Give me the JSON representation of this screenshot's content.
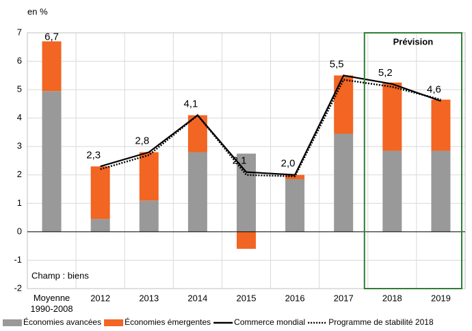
{
  "chart_data": {
    "type": "bar",
    "y_label": "en %",
    "categories": [
      "Moyenne\n1990-2008",
      "2012",
      "2013",
      "2014",
      "2015",
      "2016",
      "2017",
      "2018",
      "2019"
    ],
    "series": [
      {
        "name": "Économies avancées",
        "color": "#999999",
        "values": [
          4.95,
          0.45,
          1.1,
          2.8,
          2.75,
          1.85,
          3.45,
          2.85,
          2.85
        ]
      },
      {
        "name": "Économies émergentes",
        "color": "#f26522",
        "values": [
          1.75,
          1.85,
          1.7,
          1.3,
          -0.6,
          0.15,
          2.05,
          2.4,
          1.8
        ]
      },
      {
        "name": "Commerce mondial",
        "color": "#000000",
        "type": "line",
        "values": [
          null,
          2.3,
          2.8,
          4.1,
          2.1,
          2.0,
          5.5,
          5.2,
          4.6
        ],
        "value_labels": [
          null,
          "2,3",
          "2,8",
          "4,1",
          "2,1",
          "2,0",
          "5,5",
          "5,2",
          "4,6"
        ]
      },
      {
        "name": "Programme de stabilité 2018",
        "color": "#000000",
        "type": "line",
        "dash": true,
        "values": [
          null,
          2.2,
          2.7,
          4.1,
          2.0,
          1.95,
          5.35,
          5.1,
          4.65
        ]
      }
    ],
    "annotations": [
      {
        "text": "6,7",
        "x": 0,
        "y": 6.7
      },
      {
        "text": "Champ : biens"
      },
      {
        "text": "Prévision",
        "color": "#2e7d32"
      }
    ],
    "ylim": [
      -2,
      7
    ],
    "yticks": [
      -2,
      -1,
      0,
      1,
      2,
      3,
      4,
      5,
      6,
      7
    ],
    "grid": true,
    "legend": "bottom"
  }
}
